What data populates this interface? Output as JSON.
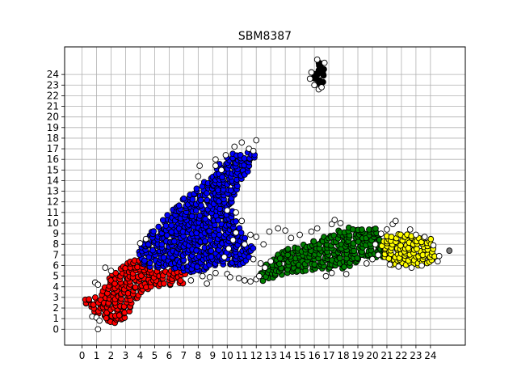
{
  "chart_data": {
    "type": "scatter",
    "title": "SBM8387",
    "xlabel": "",
    "ylabel": "",
    "xlim": [
      -1.2,
      26.4
    ],
    "ylim": [
      -1.5,
      26.6
    ],
    "xticks": [
      "0",
      "1",
      "2",
      "3",
      "4",
      "5",
      "6",
      "7",
      "8",
      "9",
      "10",
      "11",
      "12",
      "13",
      "14",
      "15",
      "16",
      "17",
      "18",
      "19",
      "20",
      "21",
      "22",
      "23",
      "24"
    ],
    "yticks": [
      "0",
      "1",
      "2",
      "3",
      "4",
      "5",
      "6",
      "7",
      "8",
      "9",
      "10",
      "11",
      "12",
      "13",
      "14",
      "15",
      "16",
      "17",
      "18",
      "19",
      "20",
      "21",
      "22",
      "23",
      "24"
    ],
    "grid": true,
    "marker_edge_color": "#000000",
    "clusters": [
      {
        "color": "#ff0000",
        "polygon": [
          [
            0.0,
            2.6
          ],
          [
            1.0,
            1.4
          ],
          [
            2.0,
            0.5
          ],
          [
            3.0,
            0.8
          ],
          [
            3.6,
            2.6
          ],
          [
            4.2,
            3.3
          ],
          [
            5.0,
            4.0
          ],
          [
            7.0,
            4.2
          ],
          [
            7.3,
            5.4
          ],
          [
            5.0,
            5.6
          ],
          [
            4.0,
            6.8
          ],
          [
            3.2,
            6.7
          ],
          [
            2.6,
            5.9
          ],
          [
            2.0,
            5.3
          ],
          [
            1.6,
            4.2
          ],
          [
            1.2,
            3.1
          ],
          [
            0.2,
            2.9
          ]
        ]
      },
      {
        "color": "#0000ff",
        "polygon": [
          [
            3.8,
            7.9
          ],
          [
            5.0,
            9.5
          ],
          [
            6.0,
            11.0
          ],
          [
            7.0,
            12.5
          ],
          [
            8.0,
            13.5
          ],
          [
            9.0,
            14.5
          ],
          [
            9.4,
            15.5
          ],
          [
            10.2,
            16.6
          ],
          [
            11.0,
            16.8
          ],
          [
            12.0,
            16.5
          ],
          [
            11.8,
            15.5
          ],
          [
            11.4,
            14.6
          ],
          [
            10.8,
            13.8
          ],
          [
            10.6,
            12.8
          ],
          [
            10.3,
            11.4
          ],
          [
            10.5,
            10.4
          ],
          [
            11.0,
            9.3
          ],
          [
            11.4,
            8.3
          ],
          [
            12.0,
            7.6
          ],
          [
            11.6,
            6.9
          ],
          [
            11.2,
            6.1
          ],
          [
            10.4,
            5.9
          ],
          [
            9.6,
            6.1
          ],
          [
            8.6,
            5.6
          ],
          [
            7.5,
            5.4
          ],
          [
            6.0,
            5.7
          ],
          [
            5.0,
            5.6
          ],
          [
            4.0,
            6.3
          ]
        ]
      },
      {
        "color": "#008000",
        "polygon": [
          [
            12.2,
            4.4
          ],
          [
            13.5,
            5.0
          ],
          [
            14.5,
            5.4
          ],
          [
            15.5,
            5.4
          ],
          [
            16.6,
            5.6
          ],
          [
            18.0,
            5.7
          ],
          [
            19.6,
            6.5
          ],
          [
            21.0,
            6.8
          ],
          [
            20.9,
            7.5
          ],
          [
            20.3,
            9.6
          ],
          [
            19.0,
            9.8
          ],
          [
            17.8,
            9.4
          ],
          [
            16.8,
            8.9
          ],
          [
            15.6,
            8.1
          ],
          [
            14.6,
            7.8
          ],
          [
            13.6,
            7.3
          ],
          [
            12.8,
            6.6
          ],
          [
            12.2,
            5.6
          ]
        ]
      },
      {
        "color": "#ffff00",
        "polygon": [
          [
            20.5,
            7.0
          ],
          [
            21.5,
            5.9
          ],
          [
            22.6,
            5.9
          ],
          [
            23.8,
            6.1
          ],
          [
            24.6,
            6.6
          ],
          [
            24.3,
            7.5
          ],
          [
            24.0,
            8.6
          ],
          [
            23.2,
            8.7
          ],
          [
            22.0,
            9.1
          ],
          [
            21.0,
            8.8
          ],
          [
            20.6,
            8.1
          ]
        ]
      },
      {
        "color": "#000000",
        "polygon": [
          [
            15.9,
            23.4
          ],
          [
            16.0,
            24.8
          ],
          [
            16.4,
            25.2
          ],
          [
            16.8,
            24.4
          ],
          [
            16.6,
            23.2
          ],
          [
            16.2,
            23.0
          ]
        ]
      },
      {
        "color": "#808080",
        "points": [
          [
            25.3,
            7.4
          ]
        ]
      }
    ],
    "unassigned_color": "#ffffff",
    "unassigned_points": [
      [
        0.9,
        4.4
      ],
      [
        1.1,
        4.2
      ],
      [
        0.7,
        1.2
      ],
      [
        1.0,
        1.1
      ],
      [
        1.2,
        0.8
      ],
      [
        1.1,
        0.0
      ],
      [
        1.6,
        5.8
      ],
      [
        2.0,
        5.5
      ],
      [
        4.0,
        8.1
      ],
      [
        4.4,
        8.5
      ],
      [
        7.5,
        4.6
      ],
      [
        8.3,
        5.0
      ],
      [
        8.8,
        4.9
      ],
      [
        8.6,
        4.3
      ],
      [
        9.2,
        5.3
      ],
      [
        10.0,
        5.2
      ],
      [
        10.2,
        4.9
      ],
      [
        10.8,
        4.8
      ],
      [
        11.2,
        4.6
      ],
      [
        11.6,
        4.5
      ],
      [
        12.0,
        4.7
      ],
      [
        12.2,
        5.0
      ],
      [
        9.8,
        6.8
      ],
      [
        10.1,
        7.6
      ],
      [
        10.4,
        8.4
      ],
      [
        10.6,
        9.1
      ],
      [
        11.0,
        10.2
      ],
      [
        10.6,
        11.0
      ],
      [
        10.0,
        11.2
      ],
      [
        11.2,
        8.0
      ],
      [
        11.6,
        8.9
      ],
      [
        12.0,
        8.7
      ],
      [
        12.5,
        8.0
      ],
      [
        12.9,
        9.2
      ],
      [
        13.5,
        9.5
      ],
      [
        14.0,
        9.3
      ],
      [
        14.4,
        8.6
      ],
      [
        15.0,
        8.9
      ],
      [
        15.8,
        9.2
      ],
      [
        16.2,
        9.5
      ],
      [
        17.2,
        9.9
      ],
      [
        17.4,
        10.3
      ],
      [
        17.8,
        10.0
      ],
      [
        12.3,
        6.2
      ],
      [
        12.6,
        5.8
      ],
      [
        13.0,
        6.4
      ],
      [
        11.8,
        6.6
      ],
      [
        8.1,
        15.4
      ],
      [
        9.6,
        15.0
      ],
      [
        9.2,
        15.4
      ],
      [
        8.0,
        14.4
      ],
      [
        9.2,
        16.0
      ],
      [
        9.9,
        16.4
      ],
      [
        10.5,
        17.2
      ],
      [
        11.0,
        17.6
      ],
      [
        11.5,
        17.0
      ],
      [
        12.0,
        17.8
      ],
      [
        11.8,
        16.8
      ],
      [
        16.8,
        5.0
      ],
      [
        17.2,
        5.3
      ],
      [
        18.2,
        5.2
      ],
      [
        19.6,
        6.2
      ],
      [
        20.0,
        6.6
      ],
      [
        20.6,
        9.0
      ],
      [
        21.0,
        9.4
      ],
      [
        21.4,
        9.9
      ],
      [
        21.6,
        10.2
      ],
      [
        22.6,
        9.4
      ],
      [
        23.0,
        8.9
      ],
      [
        23.6,
        8.7
      ],
      [
        24.2,
        7.9
      ],
      [
        24.6,
        6.9
      ],
      [
        24.5,
        6.4
      ],
      [
        23.4,
        6.0
      ],
      [
        22.7,
        5.8
      ],
      [
        21.8,
        5.9
      ],
      [
        21.2,
        6.1
      ],
      [
        20.4,
        7.0
      ],
      [
        20.2,
        8.0
      ],
      [
        15.8,
        24.2
      ],
      [
        15.7,
        23.6
      ],
      [
        16.0,
        23.0
      ],
      [
        16.3,
        22.6
      ],
      [
        16.5,
        22.8
      ],
      [
        16.7,
        25.1
      ],
      [
        16.2,
        25.4
      ]
    ]
  }
}
